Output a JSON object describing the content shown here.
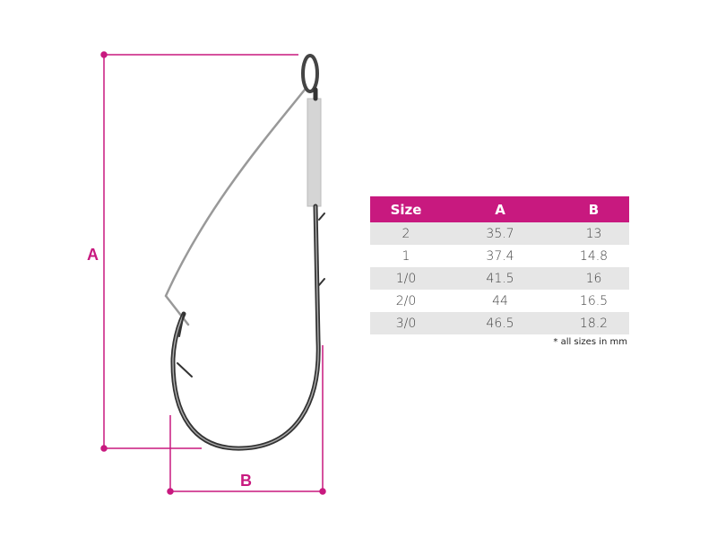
{
  "colors": {
    "accent": "#c8197f",
    "row_alt": "#e6e6e6"
  },
  "dimensions": {
    "a_label": "A",
    "b_label": "B"
  },
  "table": {
    "headers": [
      "Size",
      "A",
      "B"
    ],
    "rows": [
      [
        "2",
        "35.7",
        "13"
      ],
      [
        "1",
        "37.4",
        "14.8"
      ],
      [
        "1/0",
        "41.5",
        "16"
      ],
      [
        "2/0",
        "44",
        "16.5"
      ],
      [
        "3/0",
        "46.5",
        "18.2"
      ]
    ],
    "note": "* all sizes in mm"
  }
}
